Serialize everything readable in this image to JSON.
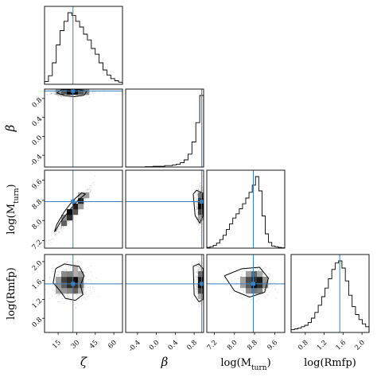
{
  "chart_data": {
    "type": "corner",
    "parameters": [
      {
        "key": "zeta",
        "label": "ζ",
        "sub": "",
        "italic": true,
        "range": [
          4,
          67
        ],
        "ticks": [
          15,
          30,
          45,
          60
        ],
        "tick_labels": [
          "15",
          "30",
          "45",
          "60"
        ],
        "truth": 27
      },
      {
        "key": "beta",
        "label": "β",
        "sub": "",
        "italic": true,
        "range": [
          -0.65,
          1.0
        ],
        "ticks": [
          -0.4,
          0.0,
          0.4,
          0.8
        ],
        "tick_labels": [
          "-0.4",
          "0.0",
          "0.4",
          "0.8"
        ],
        "truth": 0.96
      },
      {
        "key": "logMturn",
        "label": "log(M",
        "sub": "turn",
        "italic": false,
        "range": [
          6.9,
          10.0
        ],
        "ticks": [
          7.2,
          8.0,
          8.8,
          9.6
        ],
        "tick_labels": [
          "7.2",
          "8.0",
          "8.8",
          "9.6"
        ],
        "truth": 8.75
      },
      {
        "key": "logRmfp",
        "label": "log(Rmfp)",
        "sub": "",
        "italic": false,
        "range": [
          0.5,
          2.15
        ],
        "ticks": [
          0.8,
          1.2,
          1.6,
          2.0
        ],
        "tick_labels": [
          "0.8",
          "1.2",
          "1.6",
          "2.0"
        ],
        "truth": 1.53
      }
    ],
    "histograms": {
      "zeta": [
        0.04,
        0.12,
        0.3,
        0.55,
        0.75,
        0.88,
        1.0,
        0.96,
        0.88,
        0.8,
        0.7,
        0.62,
        0.5,
        0.42,
        0.3,
        0.2,
        0.13,
        0.08,
        0.05,
        0.03
      ],
      "beta": [
        0.0,
        0.0,
        0.0,
        0.0,
        0.0,
        0.005,
        0.005,
        0.01,
        0.01,
        0.01,
        0.02,
        0.02,
        0.03,
        0.04,
        0.06,
        0.1,
        0.18,
        0.35,
        0.62,
        1.0
      ],
      "logMturn": [
        0.01,
        0.02,
        0.04,
        0.07,
        0.12,
        0.18,
        0.26,
        0.34,
        0.42,
        0.48,
        0.55,
        0.62,
        0.7,
        0.78,
        0.88,
        1.0,
        0.8,
        0.45,
        0.2,
        0.08,
        0.03,
        0.02,
        0.01,
        0.005
      ],
      "logRmfp": [
        0.04,
        0.05,
        0.06,
        0.08,
        0.1,
        0.14,
        0.2,
        0.28,
        0.38,
        0.5,
        0.62,
        0.75,
        0.88,
        0.97,
        1.0,
        0.9,
        0.72,
        0.52,
        0.36,
        0.25,
        0.18,
        0.12,
        0.08
      ]
    },
    "pairs": [
      {
        "x": "zeta",
        "y": "beta",
        "center": [
          26,
          0.93
        ],
        "spread": [
          8,
          0.04
        ],
        "contour": [
          [
            14,
            0.92
          ],
          [
            18,
            0.99
          ],
          [
            30,
            1.0
          ],
          [
            38,
            0.95
          ],
          [
            36,
            0.87
          ],
          [
            28,
            0.84
          ],
          [
            20,
            0.86
          ],
          [
            14,
            0.92
          ]
        ]
      },
      {
        "x": "zeta",
        "y": "logMturn",
        "center": [
          26,
          8.7
        ],
        "spread": [
          7,
          0.3
        ],
        "contour": [
          [
            12,
            7.55
          ],
          [
            14,
            7.85
          ],
          [
            20,
            8.35
          ],
          [
            27,
            8.8
          ],
          [
            34,
            9.1
          ],
          [
            37,
            9.05
          ],
          [
            31,
            8.8
          ],
          [
            24,
            8.4
          ],
          [
            17,
            7.95
          ],
          [
            13,
            7.6
          ],
          [
            12,
            7.55
          ]
        ]
      },
      {
        "x": "beta",
        "y": "logMturn",
        "center": [
          0.93,
          8.6
        ],
        "spread": [
          0.04,
          0.35
        ],
        "contour": [
          [
            0.78,
            9.05
          ],
          [
            0.85,
            9.2
          ],
          [
            0.97,
            9.1
          ],
          [
            0.99,
            8.2
          ],
          [
            0.92,
            7.9
          ],
          [
            0.82,
            8.2
          ],
          [
            0.78,
            9.05
          ]
        ]
      },
      {
        "x": "zeta",
        "y": "logRmfp",
        "center": [
          25,
          1.55
        ],
        "spread": [
          7,
          0.17
        ],
        "contour": [
          [
            13,
            1.85
          ],
          [
            20,
            1.95
          ],
          [
            32,
            1.9
          ],
          [
            36,
            1.7
          ],
          [
            33,
            1.5
          ],
          [
            35,
            1.3
          ],
          [
            29,
            1.18
          ],
          [
            21,
            1.22
          ],
          [
            16,
            1.4
          ],
          [
            11,
            1.55
          ],
          [
            13,
            1.85
          ]
        ]
      },
      {
        "x": "beta",
        "y": "logRmfp",
        "center": [
          0.93,
          1.55
        ],
        "spread": [
          0.04,
          0.18
        ],
        "contour": [
          [
            0.78,
            1.9
          ],
          [
            0.9,
            1.95
          ],
          [
            0.99,
            1.85
          ],
          [
            0.99,
            1.2
          ],
          [
            0.9,
            1.15
          ],
          [
            0.8,
            1.3
          ],
          [
            0.78,
            1.9
          ]
        ]
      },
      {
        "x": "logMturn",
        "y": "logRmfp",
        "center": [
          8.8,
          1.55
        ],
        "spread": [
          0.3,
          0.15
        ],
        "contour": [
          [
            7.6,
            1.7
          ],
          [
            8.3,
            1.85
          ],
          [
            9.0,
            1.88
          ],
          [
            9.35,
            1.65
          ],
          [
            9.2,
            1.35
          ],
          [
            8.6,
            1.25
          ],
          [
            8.0,
            1.38
          ],
          [
            7.6,
            1.7
          ]
        ]
      }
    ]
  }
}
